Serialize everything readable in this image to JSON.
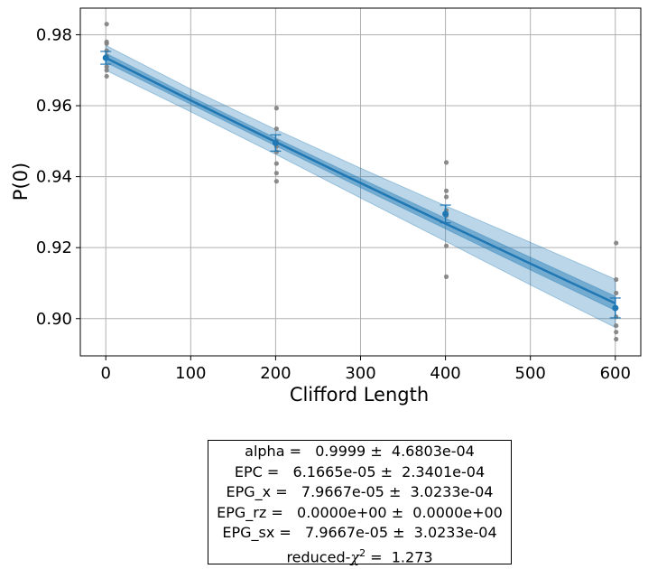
{
  "chart_data": {
    "type": "scatter",
    "title": "",
    "xlabel": "Clifford Length",
    "ylabel": "P(0)",
    "xlim": [
      -30,
      630
    ],
    "ylim": [
      0.8895,
      0.9875
    ],
    "xticks": [
      0,
      100,
      200,
      300,
      400,
      500,
      600
    ],
    "yticks": [
      0.9,
      0.92,
      0.94,
      0.96,
      0.98
    ],
    "xtick_labels": [
      "0",
      "100",
      "200",
      "300",
      "400",
      "500",
      "600"
    ],
    "ytick_labels": [
      "0.90",
      "0.92",
      "0.94",
      "0.96",
      "0.98"
    ],
    "grid": true,
    "colors": {
      "raw_points": "#808080",
      "fit": "#1f77b4",
      "band": "#1f77b4",
      "grid": "#b0b0b0"
    },
    "raw_points": {
      "x": [
        1,
        1,
        1,
        1,
        1,
        1,
        1,
        1,
        201,
        201,
        201,
        201,
        201,
        201,
        201,
        201,
        401,
        401,
        401,
        401,
        401,
        401,
        401,
        601,
        601,
        601,
        601,
        601,
        601,
        601,
        601
      ],
      "y": [
        0.983,
        0.978,
        0.9775,
        0.9755,
        0.974,
        0.971,
        0.97,
        0.9683,
        0.9593,
        0.9535,
        0.95,
        0.947,
        0.9437,
        0.941,
        0.9387,
        0.9485,
        0.944,
        0.936,
        0.9343,
        0.9305,
        0.929,
        0.9205,
        0.9118,
        0.9213,
        0.911,
        0.9072,
        0.9005,
        0.898,
        0.8962,
        0.8942,
        0.903
      ]
    },
    "mean_points": {
      "x": [
        0,
        200,
        400,
        600
      ],
      "y": [
        0.9735,
        0.9495,
        0.9295,
        0.903
      ],
      "yerr": [
        0.0018,
        0.0023,
        0.0025,
        0.0028
      ]
    },
    "fit_curve": {
      "x": [
        0,
        100,
        200,
        300,
        400,
        500,
        600
      ],
      "y": [
        0.9735,
        0.9615,
        0.9498,
        0.9382,
        0.9268,
        0.9155,
        0.9043
      ],
      "band_inner": [
        0.0013,
        0.0011,
        0.0011,
        0.0013,
        0.0015,
        0.0018,
        0.002
      ],
      "band_outer": [
        0.0035,
        0.0032,
        0.0035,
        0.0042,
        0.005,
        0.006,
        0.0068
      ]
    }
  },
  "fit_report": {
    "lines": [
      "alpha =   0.9999 ±  4.6803e-04",
      "EPC =   6.1665e-05 ±  2.3401e-04",
      "EPG_x =   7.9667e-05 ±  3.0233e-04",
      "EPG_rz =   0.0000e+00 ±  0.0000e+00",
      "EPG_sx =   7.9667e-05 ±  3.0233e-04"
    ],
    "chi_prefix": "reduced-",
    "chi_symbol": "χ",
    "chi_power": "2",
    "chi_value": " =  1.273"
  }
}
